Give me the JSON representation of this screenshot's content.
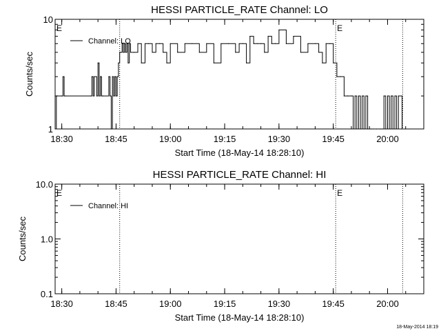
{
  "stamp": "18-May-2014 18:19",
  "chart_data": [
    {
      "type": "line",
      "title": "HESSI PARTICLE_RATE Channel: LO",
      "xlabel": "Start Time (18-May-14 18:28:10)",
      "ylabel": "Counts/sec",
      "yscale": "log",
      "ylim": [
        1,
        10
      ],
      "xlim": [
        "18:28:10",
        "20:10:00"
      ],
      "xticks": [
        "18:30",
        "18:45",
        "19:00",
        "19:15",
        "19:30",
        "19:45",
        "20:00"
      ],
      "yticks": [
        "1",
        "10"
      ],
      "legend": "top-left",
      "markers": [
        {
          "label": "E",
          "x": "18:28:10"
        },
        {
          "label": "",
          "x": "18:46:00"
        },
        {
          "label": "E",
          "x": "19:45:40"
        },
        {
          "label": "",
          "x": "20:04:10"
        }
      ],
      "series": [
        {
          "name": "Channel: LO",
          "x": [
            "18:28:10",
            "18:28:30",
            "18:30",
            "18:30:20",
            "18:30:40",
            "18:31",
            "18:38",
            "18:38:20",
            "18:38:40",
            "18:39",
            "18:39:40",
            "18:40",
            "18:40:20",
            "18:40:40",
            "18:41",
            "18:41:20",
            "18:43",
            "18:43:20",
            "18:43:40",
            "18:44",
            "18:44:20",
            "18:44:40",
            "18:45",
            "18:45:20",
            "18:45:40",
            "18:46",
            "18:46:20",
            "18:46:40",
            "18:47",
            "18:47:20",
            "18:47:40",
            "18:48",
            "18:48:20",
            "18:48:40",
            "18:49",
            "18:50",
            "18:51",
            "18:52",
            "18:53",
            "18:54",
            "18:55",
            "18:56",
            "18:57",
            "18:58",
            "18:59",
            "19:00",
            "19:02",
            "19:04",
            "19:06",
            "19:08",
            "19:10",
            "19:12",
            "19:14",
            "19:16",
            "19:18",
            "19:19",
            "19:20",
            "19:21",
            "19:22",
            "19:23",
            "19:24",
            "19:25",
            "19:26",
            "19:27",
            "19:28",
            "19:29",
            "19:30",
            "19:32",
            "19:34",
            "19:36",
            "19:38",
            "19:40",
            "19:41",
            "19:42",
            "19:43",
            "19:44",
            "19:45",
            "19:46",
            "19:47",
            "19:48",
            "19:49",
            "19:50",
            "19:50:30",
            "19:51",
            "19:51:30",
            "19:52",
            "19:52:30",
            "19:53",
            "19:53:30",
            "19:54",
            "19:54:30",
            "19:55",
            "19:55:30",
            "19:56",
            "19:57",
            "19:58",
            "19:58:30",
            "19:59",
            "19:59:30",
            "20:00",
            "20:00:30",
            "20:01",
            "20:01:30",
            "20:02",
            "20:02:30",
            "20:03",
            "20:04"
          ],
          "y": [
            1,
            2,
            2,
            3,
            2,
            2,
            2,
            3,
            2,
            3,
            2,
            4,
            2,
            3,
            2,
            2,
            3,
            2,
            1,
            3,
            2,
            3,
            2,
            3,
            4,
            5,
            5,
            6,
            5,
            6,
            5,
            6,
            4,
            6,
            5,
            5,
            6,
            4,
            6,
            6,
            5,
            6,
            6,
            5,
            4,
            6,
            5,
            6,
            6,
            5,
            6,
            4,
            6,
            6,
            5,
            6,
            6,
            4,
            7,
            6,
            6,
            6,
            5,
            7,
            6,
            6,
            8,
            6,
            7,
            5,
            6,
            6,
            5,
            4,
            6,
            6,
            4,
            3,
            3,
            2,
            2,
            2,
            1,
            2,
            1,
            2,
            1,
            2,
            1,
            2,
            1,
            1,
            1,
            1,
            1,
            1,
            1,
            2,
            1,
            2,
            1,
            2,
            1,
            2,
            1,
            2,
            1
          ]
        }
      ]
    },
    {
      "type": "line",
      "title": "HESSI PARTICLE_RATE Channel: HI",
      "xlabel": "Start Time (18-May-14 18:28:10)",
      "ylabel": "Counts/sec",
      "yscale": "log",
      "ylim": [
        0.1,
        10
      ],
      "xlim": [
        "18:28:10",
        "20:10:00"
      ],
      "xticks": [
        "18:30",
        "18:45",
        "19:00",
        "19:15",
        "19:30",
        "19:45",
        "20:00"
      ],
      "yticks": [
        "0.1",
        "1.0",
        "10.0"
      ],
      "legend": "top-left",
      "markers": [
        {
          "label": "E",
          "x": "18:28:10"
        },
        {
          "label": "",
          "x": "18:46:00"
        },
        {
          "label": "E",
          "x": "19:45:40"
        },
        {
          "label": "",
          "x": "20:04:10"
        }
      ],
      "series": [
        {
          "name": "Channel: HI",
          "x": [],
          "y": []
        }
      ]
    }
  ]
}
